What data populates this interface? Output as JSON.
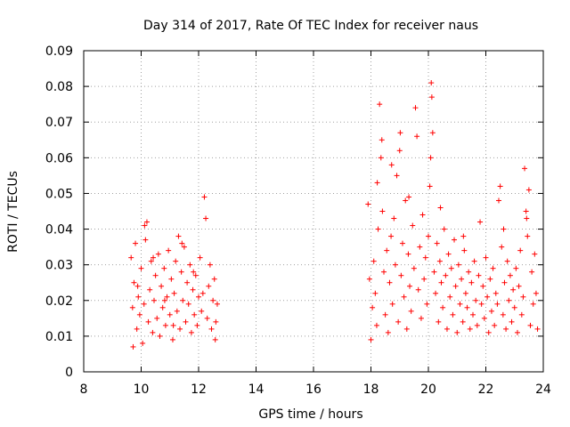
{
  "chart_data": {
    "type": "scatter",
    "title": "Day 314 of 2017, Rate Of TEC Index for receiver naus",
    "xlabel": "GPS time / hours",
    "ylabel": "ROTI / TECUs",
    "xlim": [
      8,
      24
    ],
    "ylim": [
      0,
      0.09
    ],
    "xticks": [
      8,
      10,
      12,
      14,
      16,
      18,
      20,
      22,
      24
    ],
    "xtick_labels": [
      "8",
      "10",
      "12",
      "14",
      "16",
      "18",
      "20",
      "22",
      "24"
    ],
    "yticks": [
      0,
      0.01,
      0.02,
      0.03,
      0.04,
      0.05,
      0.06,
      0.07,
      0.08,
      0.09
    ],
    "ytick_labels": [
      "0",
      "0.01",
      "0.02",
      "0.03",
      "0.04",
      "0.05",
      "0.06",
      "0.07",
      "0.08",
      "0.09"
    ],
    "grid": true,
    "marker": "+",
    "marker_color": "#ff0000",
    "series": [
      {
        "name": "ROTI",
        "points": [
          [
            9.65,
            0.032
          ],
          [
            9.7,
            0.018
          ],
          [
            9.75,
            0.025
          ],
          [
            9.8,
            0.036
          ],
          [
            9.85,
            0.012
          ],
          [
            9.9,
            0.021
          ],
          [
            9.95,
            0.016
          ],
          [
            10.0,
            0.029
          ],
          [
            10.05,
            0.008
          ],
          [
            10.1,
            0.019
          ],
          [
            10.15,
            0.037
          ],
          [
            10.2,
            0.042
          ],
          [
            10.25,
            0.014
          ],
          [
            10.3,
            0.023
          ],
          [
            10.35,
            0.031
          ],
          [
            10.4,
            0.011
          ],
          [
            10.45,
            0.02
          ],
          [
            10.5,
            0.027
          ],
          [
            10.55,
            0.015
          ],
          [
            10.6,
            0.033
          ],
          [
            10.65,
            0.01
          ],
          [
            10.7,
            0.024
          ],
          [
            10.75,
            0.018
          ],
          [
            10.8,
            0.029
          ],
          [
            10.85,
            0.013
          ],
          [
            10.9,
            0.021
          ],
          [
            10.95,
            0.034
          ],
          [
            11.0,
            0.016
          ],
          [
            11.05,
            0.026
          ],
          [
            11.1,
            0.009
          ],
          [
            11.15,
            0.022
          ],
          [
            11.2,
            0.031
          ],
          [
            11.25,
            0.017
          ],
          [
            11.3,
            0.038
          ],
          [
            11.35,
            0.012
          ],
          [
            11.4,
            0.028
          ],
          [
            11.45,
            0.02
          ],
          [
            11.5,
            0.035
          ],
          [
            11.55,
            0.014
          ],
          [
            11.6,
            0.025
          ],
          [
            11.65,
            0.019
          ],
          [
            11.7,
            0.03
          ],
          [
            11.75,
            0.011
          ],
          [
            11.8,
            0.023
          ],
          [
            11.85,
            0.016
          ],
          [
            11.9,
            0.027
          ],
          [
            11.95,
            0.013
          ],
          [
            12.0,
            0.021
          ],
          [
            12.05,
            0.032
          ],
          [
            12.1,
            0.017
          ],
          [
            12.2,
            0.049
          ],
          [
            12.25,
            0.043
          ],
          [
            12.3,
            0.015
          ],
          [
            12.35,
            0.024
          ],
          [
            12.4,
            0.03
          ],
          [
            12.45,
            0.012
          ],
          [
            12.5,
            0.02
          ],
          [
            12.55,
            0.026
          ],
          [
            12.6,
            0.014
          ],
          [
            12.65,
            0.019
          ],
          [
            9.72,
            0.007
          ],
          [
            10.12,
            0.041
          ],
          [
            11.42,
            0.036
          ],
          [
            12.58,
            0.009
          ],
          [
            10.82,
            0.02
          ],
          [
            11.12,
            0.013
          ],
          [
            9.88,
            0.024
          ],
          [
            10.42,
            0.032
          ],
          [
            11.82,
            0.028
          ],
          [
            12.15,
            0.022
          ],
          [
            17.9,
            0.047
          ],
          [
            17.95,
            0.026
          ],
          [
            18.0,
            0.009
          ],
          [
            18.05,
            0.018
          ],
          [
            18.1,
            0.031
          ],
          [
            18.15,
            0.022
          ],
          [
            18.2,
            0.013
          ],
          [
            18.25,
            0.04
          ],
          [
            18.3,
            0.075
          ],
          [
            18.35,
            0.06
          ],
          [
            18.4,
            0.045
          ],
          [
            18.45,
            0.028
          ],
          [
            18.5,
            0.016
          ],
          [
            18.55,
            0.034
          ],
          [
            18.6,
            0.011
          ],
          [
            18.65,
            0.025
          ],
          [
            18.7,
            0.038
          ],
          [
            18.75,
            0.019
          ],
          [
            18.8,
            0.043
          ],
          [
            18.85,
            0.03
          ],
          [
            18.9,
            0.055
          ],
          [
            18.95,
            0.014
          ],
          [
            19.0,
            0.062
          ],
          [
            19.05,
            0.027
          ],
          [
            19.1,
            0.036
          ],
          [
            19.15,
            0.021
          ],
          [
            19.2,
            0.048
          ],
          [
            19.25,
            0.012
          ],
          [
            19.3,
            0.033
          ],
          [
            19.35,
            0.024
          ],
          [
            19.4,
            0.017
          ],
          [
            19.45,
            0.041
          ],
          [
            19.5,
            0.029
          ],
          [
            19.55,
            0.074
          ],
          [
            19.6,
            0.066
          ],
          [
            19.65,
            0.023
          ],
          [
            19.7,
            0.035
          ],
          [
            19.75,
            0.015
          ],
          [
            19.8,
            0.044
          ],
          [
            19.85,
            0.026
          ],
          [
            19.9,
            0.032
          ],
          [
            19.95,
            0.019
          ],
          [
            20.0,
            0.038
          ],
          [
            20.05,
            0.052
          ],
          [
            20.1,
            0.081
          ],
          [
            20.12,
            0.077
          ],
          [
            20.15,
            0.067
          ],
          [
            20.2,
            0.028
          ],
          [
            20.25,
            0.022
          ],
          [
            20.3,
            0.036
          ],
          [
            20.35,
            0.014
          ],
          [
            20.4,
            0.031
          ],
          [
            20.45,
            0.025
          ],
          [
            20.5,
            0.018
          ],
          [
            20.55,
            0.04
          ],
          [
            20.6,
            0.027
          ],
          [
            20.65,
            0.012
          ],
          [
            20.7,
            0.033
          ],
          [
            20.75,
            0.021
          ],
          [
            20.8,
            0.029
          ],
          [
            20.85,
            0.016
          ],
          [
            20.9,
            0.037
          ],
          [
            20.95,
            0.024
          ],
          [
            21.0,
            0.011
          ],
          [
            21.05,
            0.03
          ],
          [
            21.1,
            0.019
          ],
          [
            21.15,
            0.026
          ],
          [
            21.2,
            0.014
          ],
          [
            21.25,
            0.034
          ],
          [
            21.3,
            0.022
          ],
          [
            21.35,
            0.018
          ],
          [
            21.4,
            0.028
          ],
          [
            21.45,
            0.012
          ],
          [
            21.5,
            0.025
          ],
          [
            21.55,
            0.016
          ],
          [
            21.6,
            0.031
          ],
          [
            21.65,
            0.02
          ],
          [
            21.7,
            0.013
          ],
          [
            21.75,
            0.027
          ],
          [
            21.8,
            0.042
          ],
          [
            21.85,
            0.019
          ],
          [
            21.9,
            0.024
          ],
          [
            21.95,
            0.015
          ],
          [
            22.0,
            0.032
          ],
          [
            22.05,
            0.021
          ],
          [
            22.1,
            0.011
          ],
          [
            22.15,
            0.026
          ],
          [
            22.2,
            0.017
          ],
          [
            22.25,
            0.029
          ],
          [
            22.3,
            0.013
          ],
          [
            22.35,
            0.022
          ],
          [
            22.4,
            0.019
          ],
          [
            22.45,
            0.048
          ],
          [
            22.5,
            0.052
          ],
          [
            22.55,
            0.035
          ],
          [
            22.6,
            0.016
          ],
          [
            22.65,
            0.025
          ],
          [
            22.7,
            0.012
          ],
          [
            22.75,
            0.031
          ],
          [
            22.8,
            0.02
          ],
          [
            22.85,
            0.027
          ],
          [
            22.9,
            0.014
          ],
          [
            22.95,
            0.023
          ],
          [
            23.0,
            0.018
          ],
          [
            23.05,
            0.029
          ],
          [
            23.1,
            0.011
          ],
          [
            23.15,
            0.024
          ],
          [
            23.2,
            0.034
          ],
          [
            23.25,
            0.016
          ],
          [
            23.3,
            0.021
          ],
          [
            23.35,
            0.057
          ],
          [
            23.4,
            0.045
          ],
          [
            23.45,
            0.038
          ],
          [
            23.5,
            0.051
          ],
          [
            23.55,
            0.013
          ],
          [
            23.6,
            0.028
          ],
          [
            23.65,
            0.019
          ],
          [
            23.7,
            0.033
          ],
          [
            23.75,
            0.022
          ],
          [
            23.8,
            0.012
          ],
          [
            18.22,
            0.053
          ],
          [
            18.72,
            0.058
          ],
          [
            19.32,
            0.049
          ],
          [
            20.42,
            0.046
          ],
          [
            21.22,
            0.038
          ],
          [
            22.62,
            0.04
          ],
          [
            23.42,
            0.043
          ],
          [
            20.08,
            0.06
          ],
          [
            19.02,
            0.067
          ],
          [
            18.38,
            0.065
          ]
        ]
      }
    ]
  }
}
